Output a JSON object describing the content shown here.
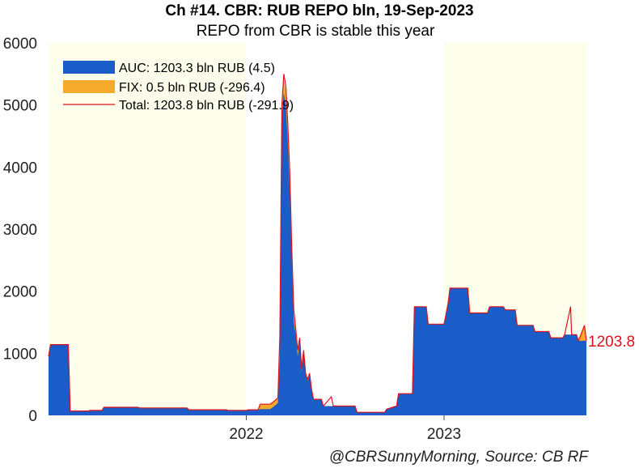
{
  "chart_data": {
    "type": "area",
    "title": "Ch #14. CBR: RUB REPO bln, 19-Sep-2023",
    "subtitle": "REPO from CBR is stable this year",
    "credit": "@CBRSunnyMorning, Source: CB RF",
    "ylim": [
      0,
      6000
    ],
    "xlim": [
      2021.0,
      2023.72
    ],
    "y_ticks": [
      0,
      1000,
      2000,
      3000,
      4000,
      5000,
      6000
    ],
    "x_ticks": [
      {
        "value": 2022,
        "label": "2022"
      },
      {
        "value": 2023,
        "label": "2023"
      }
    ],
    "grid": false,
    "legend_position": "top-left",
    "shaded_periods": [
      [
        2021.0,
        2022.0
      ],
      [
        2023.0,
        2023.72
      ]
    ],
    "last_value_label": "1203.8",
    "colors": {
      "auc": "#1a5cc8",
      "auc_highlight": "#0a52d6",
      "fix": "#f5aa2b",
      "total": "#e0101a",
      "shade": "#fdfdec"
    },
    "series": [
      {
        "name": "AUC: 1203.3 bln RUB (4.5)",
        "key": "auc",
        "points": [
          [
            2021.0,
            950
          ],
          [
            2021.01,
            1140
          ],
          [
            2021.1,
            1140
          ],
          [
            2021.11,
            70
          ],
          [
            2021.2,
            70
          ],
          [
            2021.21,
            80
          ],
          [
            2021.27,
            80
          ],
          [
            2021.28,
            130
          ],
          [
            2021.45,
            130
          ],
          [
            2021.46,
            120
          ],
          [
            2021.7,
            120
          ],
          [
            2021.71,
            90
          ],
          [
            2021.9,
            90
          ],
          [
            2021.91,
            80
          ],
          [
            2021.98,
            80
          ],
          [
            2022.0,
            80
          ],
          [
            2022.01,
            90
          ],
          [
            2022.06,
            90
          ],
          [
            2022.07,
            100
          ],
          [
            2022.12,
            100
          ],
          [
            2022.13,
            120
          ],
          [
            2022.16,
            200
          ],
          [
            2022.17,
            900
          ],
          [
            2022.18,
            4800
          ],
          [
            2022.19,
            5200
          ],
          [
            2022.2,
            5000
          ],
          [
            2022.21,
            4400
          ],
          [
            2022.22,
            3600
          ],
          [
            2022.23,
            2500
          ],
          [
            2022.24,
            1500
          ],
          [
            2022.25,
            1300
          ],
          [
            2022.26,
            950
          ],
          [
            2022.27,
            1200
          ],
          [
            2022.28,
            700
          ],
          [
            2022.29,
            1000
          ],
          [
            2022.3,
            650
          ],
          [
            2022.31,
            550
          ],
          [
            2022.32,
            650
          ],
          [
            2022.33,
            400
          ],
          [
            2022.34,
            250
          ],
          [
            2022.38,
            250
          ],
          [
            2022.39,
            150
          ],
          [
            2022.55,
            150
          ],
          [
            2022.56,
            50
          ],
          [
            2022.7,
            50
          ],
          [
            2022.71,
            100
          ],
          [
            2022.76,
            150
          ],
          [
            2022.77,
            350
          ],
          [
            2022.84,
            350
          ],
          [
            2022.85,
            1750
          ],
          [
            2022.91,
            1750
          ],
          [
            2022.92,
            1470
          ],
          [
            2022.99,
            1470
          ],
          [
            2023.0,
            1470
          ],
          [
            2023.02,
            1800
          ],
          [
            2023.03,
            2050
          ],
          [
            2023.12,
            2050
          ],
          [
            2023.13,
            1650
          ],
          [
            2023.22,
            1650
          ],
          [
            2023.23,
            1750
          ],
          [
            2023.3,
            1750
          ],
          [
            2023.31,
            1700
          ],
          [
            2023.36,
            1700
          ],
          [
            2023.37,
            1450
          ],
          [
            2023.45,
            1450
          ],
          [
            2023.46,
            1350
          ],
          [
            2023.53,
            1350
          ],
          [
            2023.54,
            1250
          ],
          [
            2023.6,
            1250
          ],
          [
            2023.61,
            1300
          ],
          [
            2023.67,
            1300
          ],
          [
            2023.68,
            1200
          ],
          [
            2023.72,
            1203
          ]
        ]
      },
      {
        "name": "FIX: 0.5 bln RUB (-296.4)",
        "key": "fix",
        "points": [
          [
            2021.0,
            950
          ],
          [
            2021.01,
            1140
          ],
          [
            2021.1,
            1140
          ],
          [
            2021.11,
            70
          ],
          [
            2021.2,
            70
          ],
          [
            2021.21,
            80
          ],
          [
            2021.27,
            80
          ],
          [
            2021.28,
            130
          ],
          [
            2021.45,
            130
          ],
          [
            2021.46,
            120
          ],
          [
            2021.7,
            120
          ],
          [
            2021.71,
            90
          ],
          [
            2021.9,
            90
          ],
          [
            2021.91,
            80
          ],
          [
            2021.98,
            80
          ],
          [
            2022.0,
            80
          ],
          [
            2022.01,
            90
          ],
          [
            2022.06,
            90
          ],
          [
            2022.07,
            180
          ],
          [
            2022.12,
            180
          ],
          [
            2022.13,
            200
          ],
          [
            2022.16,
            280
          ],
          [
            2022.17,
            1300
          ],
          [
            2022.18,
            5000
          ],
          [
            2022.19,
            5400
          ],
          [
            2022.2,
            5200
          ],
          [
            2022.21,
            4600
          ],
          [
            2022.22,
            3800
          ],
          [
            2022.23,
            2600
          ],
          [
            2022.24,
            1600
          ],
          [
            2022.25,
            1400
          ],
          [
            2022.26,
            1050
          ],
          [
            2022.27,
            1250
          ],
          [
            2022.28,
            750
          ],
          [
            2022.29,
            1050
          ],
          [
            2022.3,
            680
          ],
          [
            2022.31,
            580
          ],
          [
            2022.32,
            680
          ],
          [
            2022.33,
            420
          ],
          [
            2022.34,
            260
          ],
          [
            2022.38,
            260
          ],
          [
            2022.39,
            150
          ],
          [
            2022.55,
            150
          ],
          [
            2022.56,
            50
          ],
          [
            2022.7,
            50
          ],
          [
            2022.71,
            100
          ],
          [
            2022.76,
            150
          ],
          [
            2022.77,
            350
          ],
          [
            2022.84,
            350
          ],
          [
            2022.85,
            1750
          ],
          [
            2022.91,
            1750
          ],
          [
            2022.92,
            1470
          ],
          [
            2022.99,
            1470
          ],
          [
            2023.0,
            1470
          ],
          [
            2023.02,
            1800
          ],
          [
            2023.03,
            2050
          ],
          [
            2023.12,
            2050
          ],
          [
            2023.13,
            1650
          ],
          [
            2023.22,
            1650
          ],
          [
            2023.23,
            1750
          ],
          [
            2023.3,
            1750
          ],
          [
            2023.31,
            1700
          ],
          [
            2023.36,
            1700
          ],
          [
            2023.37,
            1450
          ],
          [
            2023.45,
            1450
          ],
          [
            2023.46,
            1350
          ],
          [
            2023.53,
            1350
          ],
          [
            2023.54,
            1250
          ],
          [
            2023.6,
            1250
          ],
          [
            2023.61,
            1300
          ],
          [
            2023.67,
            1300
          ],
          [
            2023.68,
            1200
          ],
          [
            2023.71,
            1450
          ],
          [
            2023.72,
            1204
          ]
        ]
      },
      {
        "name": "Total: 1203.8 bln RUB (-291.9)",
        "key": "total",
        "points": [
          [
            2021.0,
            950
          ],
          [
            2021.01,
            1140
          ],
          [
            2021.1,
            1140
          ],
          [
            2021.11,
            70
          ],
          [
            2021.2,
            70
          ],
          [
            2021.21,
            80
          ],
          [
            2021.27,
            80
          ],
          [
            2021.28,
            130
          ],
          [
            2021.45,
            130
          ],
          [
            2021.46,
            120
          ],
          [
            2021.7,
            120
          ],
          [
            2021.71,
            90
          ],
          [
            2021.9,
            90
          ],
          [
            2021.91,
            80
          ],
          [
            2021.98,
            80
          ],
          [
            2022.0,
            80
          ],
          [
            2022.01,
            90
          ],
          [
            2022.06,
            90
          ],
          [
            2022.07,
            180
          ],
          [
            2022.12,
            180
          ],
          [
            2022.13,
            200
          ],
          [
            2022.16,
            280
          ],
          [
            2022.17,
            1300
          ],
          [
            2022.18,
            5000
          ],
          [
            2022.19,
            5500
          ],
          [
            2022.2,
            5300
          ],
          [
            2022.21,
            4700
          ],
          [
            2022.22,
            3900
          ],
          [
            2022.23,
            2700
          ],
          [
            2022.24,
            1700
          ],
          [
            2022.25,
            1400
          ],
          [
            2022.26,
            1050
          ],
          [
            2022.27,
            1250
          ],
          [
            2022.28,
            750
          ],
          [
            2022.29,
            1050
          ],
          [
            2022.3,
            680
          ],
          [
            2022.31,
            580
          ],
          [
            2022.32,
            680
          ],
          [
            2022.33,
            420
          ],
          [
            2022.34,
            260
          ],
          [
            2022.38,
            260
          ],
          [
            2022.39,
            150
          ],
          [
            2022.43,
            300
          ],
          [
            2022.44,
            150
          ],
          [
            2022.55,
            150
          ],
          [
            2022.56,
            50
          ],
          [
            2022.7,
            50
          ],
          [
            2022.71,
            100
          ],
          [
            2022.76,
            150
          ],
          [
            2022.77,
            350
          ],
          [
            2022.84,
            350
          ],
          [
            2022.85,
            1750
          ],
          [
            2022.91,
            1750
          ],
          [
            2022.92,
            1470
          ],
          [
            2022.99,
            1470
          ],
          [
            2023.0,
            1470
          ],
          [
            2023.02,
            1800
          ],
          [
            2023.03,
            2050
          ],
          [
            2023.12,
            2050
          ],
          [
            2023.13,
            1650
          ],
          [
            2023.22,
            1650
          ],
          [
            2023.23,
            1750
          ],
          [
            2023.3,
            1750
          ],
          [
            2023.31,
            1700
          ],
          [
            2023.36,
            1700
          ],
          [
            2023.37,
            1450
          ],
          [
            2023.45,
            1450
          ],
          [
            2023.46,
            1350
          ],
          [
            2023.53,
            1350
          ],
          [
            2023.54,
            1250
          ],
          [
            2023.6,
            1250
          ],
          [
            2023.61,
            1300
          ],
          [
            2023.64,
            1750
          ],
          [
            2023.645,
            1300
          ],
          [
            2023.67,
            1300
          ],
          [
            2023.68,
            1200
          ],
          [
            2023.71,
            1450
          ],
          [
            2023.72,
            1204
          ]
        ]
      }
    ]
  }
}
